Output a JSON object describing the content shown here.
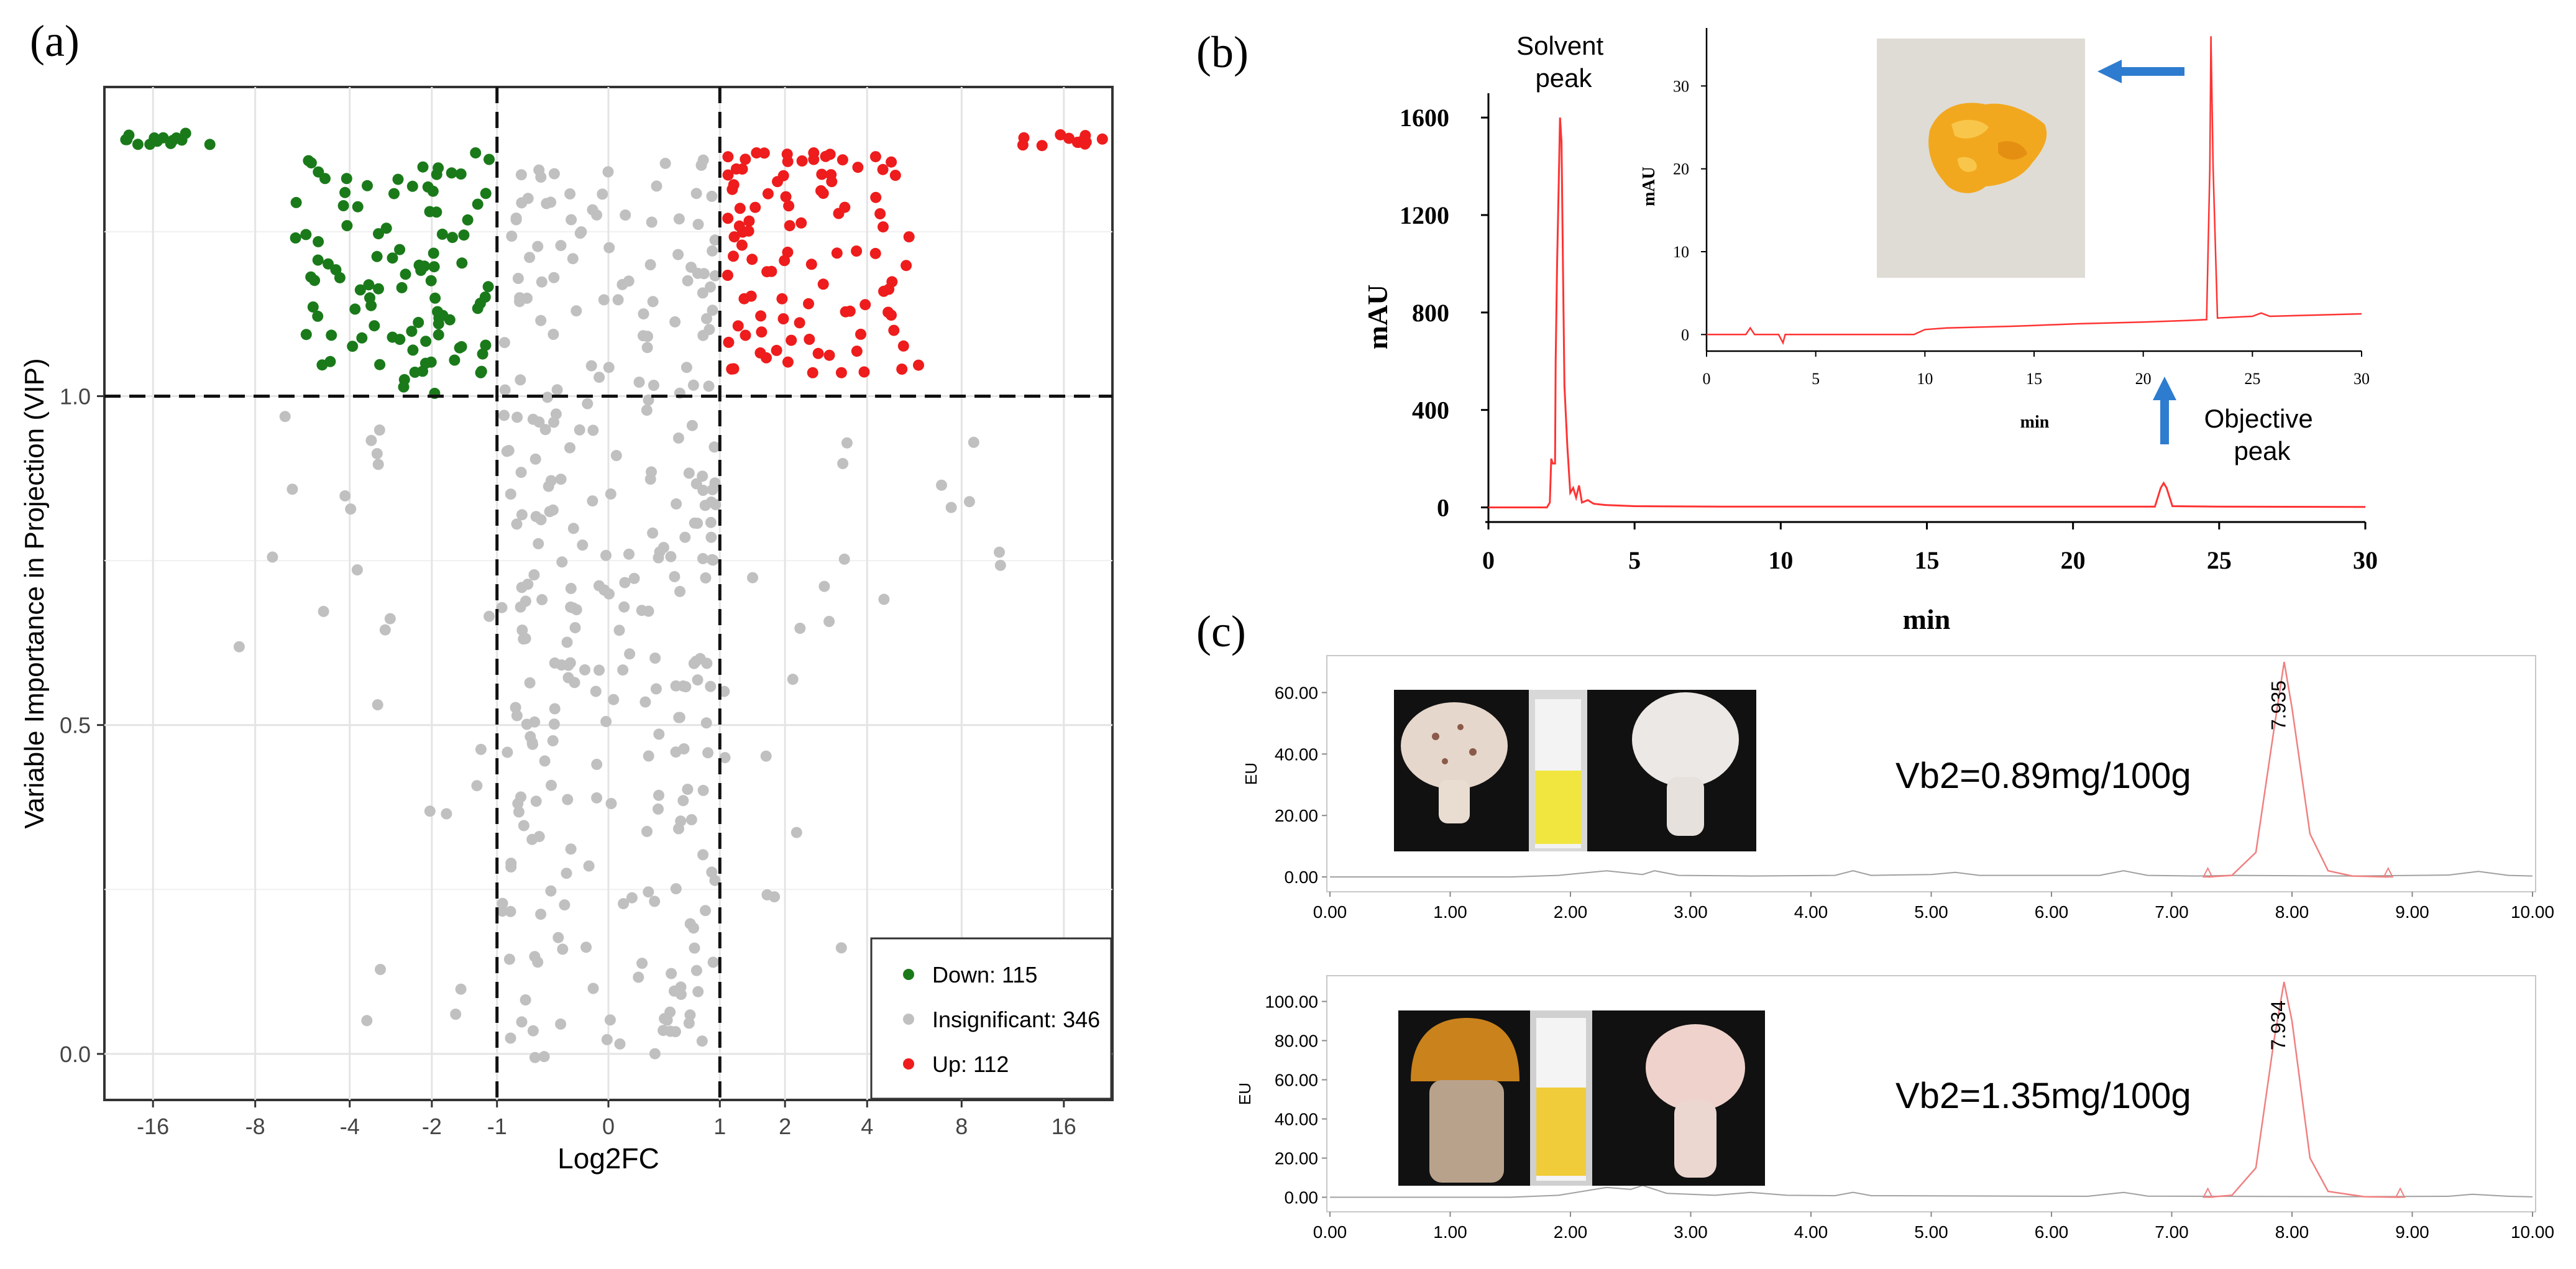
{
  "chart_data": [
    {
      "id": "a",
      "panel_label": "(a)",
      "type": "scatter",
      "subtype": "volcano",
      "xlabel": "Log2FC",
      "ylabel": "Variable Importance in Projection (VIP)",
      "x_ticks": [
        -16,
        -8,
        -4,
        -2,
        -1,
        0,
        1,
        2,
        4,
        8,
        16
      ],
      "x_tick_labels": [
        "-16",
        "-8",
        "-4",
        "-2",
        "-1",
        "0",
        "1",
        "2",
        "4",
        "8",
        "16"
      ],
      "y_ticks": [
        0.0,
        0.5,
        1.0
      ],
      "y_tick_labels": [
        "0.0",
        "0.5",
        "1.0"
      ],
      "ylim": [
        -0.07,
        1.47
      ],
      "x_scale": "signed-log2 (pseudo-log)",
      "thresholds": {
        "vip": 1.0,
        "log2fc": [
          -1,
          1
        ]
      },
      "legend": {
        "position": "bottom-right",
        "entries": [
          {
            "label": "Down: 115",
            "color": "#1a7a1a"
          },
          {
            "label": "Insignificant: 346",
            "color": "#c0c0c0"
          },
          {
            "label": "Up: 112",
            "color": "#ee1c1c"
          }
        ]
      },
      "series": [
        {
          "name": "Down",
          "color": "#1a7a1a",
          "count": 115
        },
        {
          "name": "Insignificant",
          "color": "#c0c0c0",
          "count": 346
        },
        {
          "name": "Up",
          "color": "#ee1c1c",
          "count": 112
        }
      ]
    },
    {
      "id": "b",
      "panel_label": "(b)",
      "type": "line",
      "xlabel": "min",
      "ylabel": "mAU",
      "xlim": [
        0,
        30
      ],
      "ylim": [
        -60,
        1700
      ],
      "x_ticks": [
        0,
        5,
        10,
        15,
        20,
        25,
        30
      ],
      "y_ticks": [
        0,
        400,
        800,
        1200,
        1600
      ],
      "color": "#ff3333",
      "points": [
        [
          0,
          0
        ],
        [
          2.0,
          0
        ],
        [
          2.1,
          20
        ],
        [
          2.15,
          200
        ],
        [
          2.2,
          180
        ],
        [
          2.28,
          180
        ],
        [
          2.3,
          600
        ],
        [
          2.35,
          1000
        ],
        [
          2.4,
          1300
        ],
        [
          2.45,
          1600
        ],
        [
          2.5,
          1500
        ],
        [
          2.55,
          1000
        ],
        [
          2.6,
          500
        ],
        [
          2.7,
          250
        ],
        [
          2.8,
          60
        ],
        [
          2.9,
          80
        ],
        [
          3.0,
          40
        ],
        [
          3.1,
          90
        ],
        [
          3.2,
          20
        ],
        [
          3.4,
          30
        ],
        [
          3.6,
          15
        ],
        [
          4.0,
          10
        ],
        [
          5,
          5
        ],
        [
          8,
          3
        ],
        [
          15,
          3
        ],
        [
          22,
          3
        ],
        [
          22.8,
          3
        ],
        [
          23.0,
          80
        ],
        [
          23.1,
          100
        ],
        [
          23.2,
          80
        ],
        [
          23.4,
          5
        ],
        [
          25,
          3
        ],
        [
          30,
          2
        ]
      ],
      "annotations": {
        "solvent_peak": "Solvent\npeak",
        "objective_peak": "Objective\npeak"
      },
      "inset": {
        "xlabel": "min",
        "ylabel": "mAU",
        "xlim": [
          0,
          30
        ],
        "ylim": [
          -2,
          37
        ],
        "x_ticks": [
          0,
          5,
          10,
          15,
          20,
          25,
          30
        ],
        "y_ticks": [
          0,
          10,
          20,
          30
        ],
        "points": [
          [
            0,
            0
          ],
          [
            1.8,
            0
          ],
          [
            2.0,
            0.8
          ],
          [
            2.2,
            0
          ],
          [
            3.3,
            0
          ],
          [
            3.5,
            -1
          ],
          [
            3.6,
            0
          ],
          [
            9.5,
            0
          ],
          [
            10,
            0.6
          ],
          [
            11,
            0.8
          ],
          [
            14,
            1.0
          ],
          [
            15,
            1.1
          ],
          [
            17,
            1.3
          ],
          [
            20,
            1.5
          ],
          [
            22,
            1.7
          ],
          [
            22.9,
            1.8
          ],
          [
            23.05,
            20
          ],
          [
            23.1,
            36
          ],
          [
            23.2,
            20
          ],
          [
            23.4,
            2
          ],
          [
            25,
            2.2
          ],
          [
            25.4,
            2.6
          ],
          [
            25.8,
            2.2
          ],
          [
            30,
            2.5
          ]
        ]
      }
    },
    {
      "id": "c",
      "panel_label": "(c)",
      "type": "line",
      "xlim": [
        0,
        10
      ],
      "x_tick_labels": [
        "0.00",
        "1.00",
        "2.00",
        "3.00",
        "4.00",
        "5.00",
        "6.00",
        "7.00",
        "8.00",
        "9.00",
        "10.00"
      ],
      "subplots": [
        {
          "id": "c1",
          "ylabel": "EU",
          "ylim": [
            -2,
            70
          ],
          "y_ticks": [
            0,
            20,
            40,
            60
          ],
          "y_tick_labels": [
            "0.00",
            "20.00",
            "40.00",
            "60.00"
          ],
          "peak_label": "7.935",
          "annotation": "Vb2=0.89mg/100g",
          "baseline": [
            [
              0,
              0
            ],
            [
              1.5,
              0
            ],
            [
              1.9,
              0.5
            ],
            [
              2.3,
              2
            ],
            [
              2.6,
              0.8
            ],
            [
              2.7,
              2
            ],
            [
              2.9,
              0.5
            ],
            [
              3.5,
              0.3
            ],
            [
              4.2,
              0.5
            ],
            [
              4.35,
              2
            ],
            [
              4.5,
              0.5
            ],
            [
              5.0,
              0.8
            ],
            [
              5.2,
              1.5
            ],
            [
              5.4,
              0.5
            ],
            [
              6.4,
              0.5
            ],
            [
              6.6,
              2
            ],
            [
              6.8,
              0.5
            ],
            [
              7.2,
              0.3
            ],
            [
              7.5,
              0.5
            ],
            [
              8.5,
              0.3
            ],
            [
              9.3,
              0.6
            ],
            [
              9.55,
              1.8
            ],
            [
              9.8,
              0.5
            ],
            [
              10,
              0.3
            ]
          ],
          "peak": [
            [
              7.3,
              0
            ],
            [
              7.5,
              0.5
            ],
            [
              7.7,
              8
            ],
            [
              7.85,
              48
            ],
            [
              7.935,
              70
            ],
            [
              8.0,
              55
            ],
            [
              8.15,
              14
            ],
            [
              8.3,
              2
            ],
            [
              8.5,
              0.3
            ],
            [
              8.8,
              0
            ]
          ]
        },
        {
          "id": "c2",
          "ylabel": "EU",
          "ylim": [
            -3,
            110
          ],
          "y_ticks": [
            0,
            20,
            40,
            60,
            80,
            100
          ],
          "y_tick_labels": [
            "0.00",
            "20.00",
            "40.00",
            "60.00",
            "80.00",
            "100.00"
          ],
          "peak_label": "7.934",
          "annotation": "Vb2=1.35mg/100g",
          "baseline": [
            [
              0,
              0
            ],
            [
              1.5,
              0
            ],
            [
              1.9,
              1
            ],
            [
              2.3,
              5
            ],
            [
              2.5,
              4
            ],
            [
              2.6,
              6
            ],
            [
              2.8,
              2
            ],
            [
              3.2,
              1
            ],
            [
              3.5,
              2.5
            ],
            [
              3.8,
              1
            ],
            [
              4.2,
              0.8
            ],
            [
              4.35,
              2.5
            ],
            [
              4.5,
              0.8
            ],
            [
              6.3,
              0.5
            ],
            [
              6.6,
              2.5
            ],
            [
              6.8,
              0.6
            ],
            [
              7.3,
              0.5
            ],
            [
              8.5,
              0.3
            ],
            [
              9.3,
              0.5
            ],
            [
              9.5,
              1.5
            ],
            [
              9.8,
              0.5
            ],
            [
              10,
              0.2
            ]
          ],
          "peak": [
            [
              7.3,
              0
            ],
            [
              7.5,
              1
            ],
            [
              7.7,
              15
            ],
            [
              7.85,
              80
            ],
            [
              7.934,
              110
            ],
            [
              8.0,
              90
            ],
            [
              8.15,
              20
            ],
            [
              8.3,
              3
            ],
            [
              8.6,
              0.3
            ],
            [
              8.9,
              0
            ]
          ]
        }
      ]
    }
  ]
}
